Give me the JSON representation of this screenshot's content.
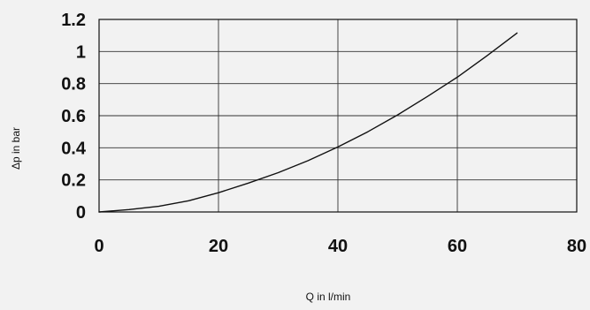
{
  "chart_data": {
    "type": "line",
    "title": "",
    "xlabel": "Q in l/min",
    "ylabel": "Δp in bar",
    "xlim": [
      0,
      80
    ],
    "ylim": [
      0,
      1.2
    ],
    "x_ticks": [
      0,
      20,
      40,
      60,
      80
    ],
    "y_ticks": [
      0,
      0.2,
      0.4,
      0.6,
      0.8,
      1,
      1.2
    ],
    "x_tick_labels": [
      "0",
      "20",
      "40",
      "60",
      "80"
    ],
    "y_tick_labels": [
      "0",
      "0.2",
      "0.4",
      "0.6",
      "0.8",
      "1",
      "1.2"
    ],
    "grid": true,
    "legend": "none",
    "series": [
      {
        "x": [
          0,
          5,
          10,
          15,
          20,
          25,
          30,
          35,
          40,
          45,
          50,
          55,
          60,
          65,
          70
        ],
        "y": [
          0,
          0.015,
          0.035,
          0.07,
          0.12,
          0.18,
          0.245,
          0.32,
          0.405,
          0.5,
          0.605,
          0.72,
          0.84,
          0.975,
          1.115
        ],
        "color": "#111111"
      }
    ]
  }
}
